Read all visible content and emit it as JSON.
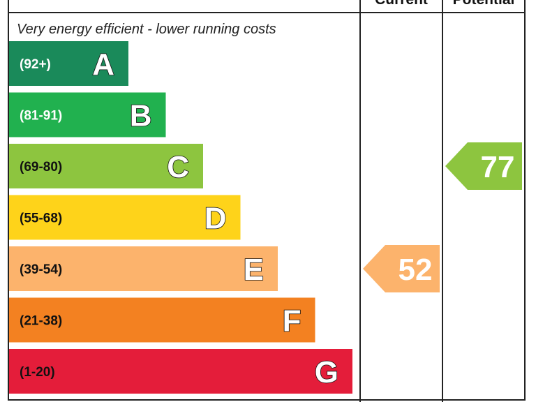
{
  "header": {
    "current_label": "Current",
    "potential_label": "Potential"
  },
  "caption_top": "Very energy efficient - lower running costs",
  "chart_data": {
    "type": "bar",
    "orientation": "horizontal",
    "categories": [
      "A",
      "B",
      "C",
      "D",
      "E",
      "F",
      "G"
    ],
    "ranges": [
      "(92+)",
      "(81-91)",
      "(69-80)",
      "(55-68)",
      "(39-54)",
      "(21-38)",
      "(1-20)"
    ],
    "colors": [
      "#1a8a5a",
      "#21b14f",
      "#8dc53f",
      "#fed31a",
      "#fcb36c",
      "#f38121",
      "#e41d3a"
    ],
    "range_text_colors": [
      "#ffffff",
      "#ffffff",
      "#111111",
      "#111111",
      "#111111",
      "#111111",
      "#111111"
    ],
    "current": {
      "value": 52,
      "band": "E",
      "color": "#fcb36c"
    },
    "potential": {
      "value": 77,
      "band": "C",
      "color": "#8dc53f"
    }
  }
}
